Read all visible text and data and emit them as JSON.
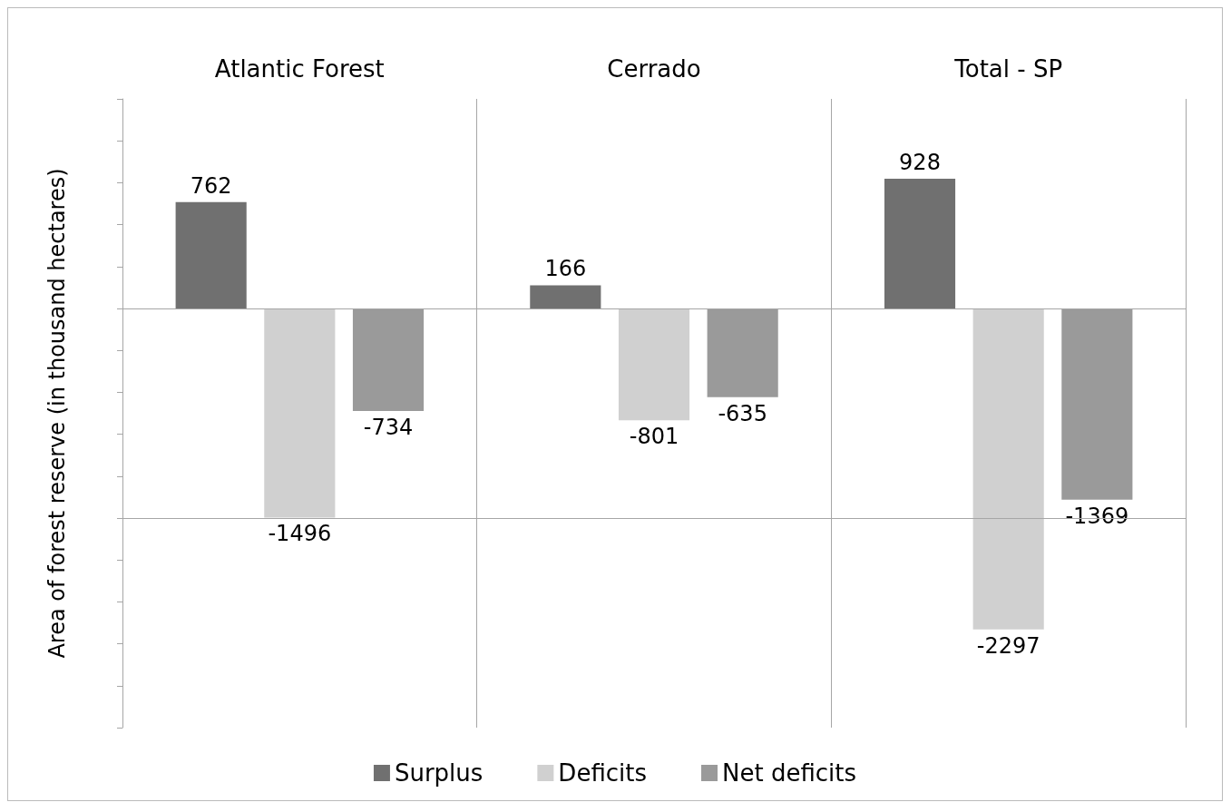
{
  "chart_data": {
    "type": "bar",
    "ylabel": "Area of forest reserve (in thousand hectares)",
    "categories": [
      "Atlantic Forest",
      "Cerrado",
      "Total - SP"
    ],
    "series": [
      {
        "name": "Surplus",
        "color": "#707070",
        "values": [
          762,
          166,
          928
        ]
      },
      {
        "name": "Deficits",
        "color": "#d0d0d0",
        "values": [
          -1496,
          -801,
          -2297
        ]
      },
      {
        "name": "Net deficits",
        "color": "#9a9a9a",
        "values": [
          -734,
          -635,
          -1369
        ]
      }
    ],
    "ylim": [
      -3000,
      1500
    ],
    "yticks": [
      {
        "value": -3000,
        "label": null
      },
      {
        "value": -2700,
        "label": null
      },
      {
        "value": -2400,
        "label": null
      },
      {
        "value": -2100,
        "label": null
      },
      {
        "value": -1800,
        "label": null
      },
      {
        "value": -1500,
        "label": null
      },
      {
        "value": -1200,
        "label": null
      },
      {
        "value": -900,
        "label": null
      },
      {
        "value": -600,
        "label": null
      },
      {
        "value": -300,
        "label": null
      },
      {
        "value": 0,
        "label": null
      },
      {
        "value": 300,
        "label": null
      },
      {
        "value": 600,
        "label": null
      },
      {
        "value": 900,
        "label": null
      },
      {
        "value": 1200,
        "label": null
      },
      {
        "value": 1500,
        "label": null
      }
    ],
    "ref_lines": [
      {
        "axis": "y",
        "value": 0,
        "color": "#a6a6a6"
      },
      {
        "axis": "y",
        "value": -1500,
        "color": "#a6a6a6"
      }
    ],
    "grid": "x",
    "legend": "bottom",
    "data_labels": true
  }
}
